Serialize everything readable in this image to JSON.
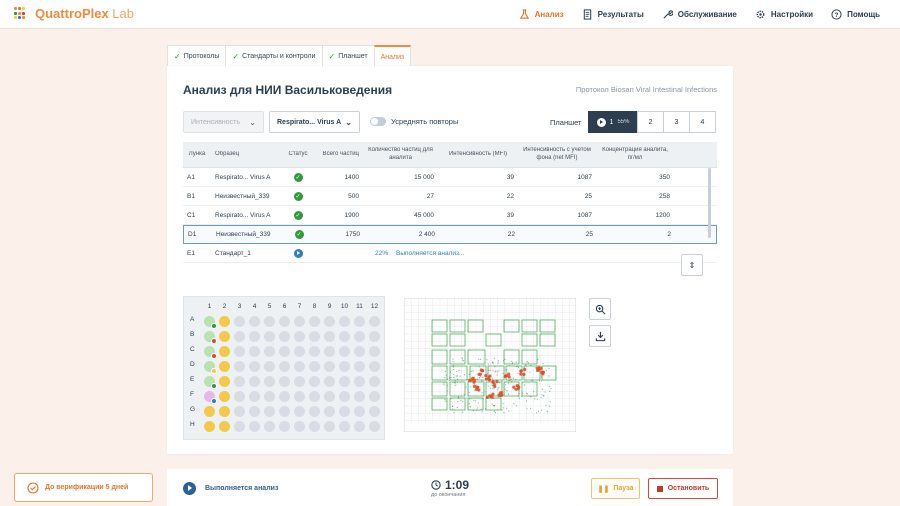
{
  "app": {
    "title_bold": "QuattroPlex",
    "title_thin": " Lab"
  },
  "nav": [
    {
      "label": "Анализ",
      "icon": "flask-icon",
      "active": true
    },
    {
      "label": "Результаты",
      "icon": "document-icon"
    },
    {
      "label": "Обслуживание",
      "icon": "wrench-icon"
    },
    {
      "label": "Настройки",
      "icon": "gear-icon"
    },
    {
      "label": "Помощь",
      "icon": "question-icon"
    }
  ],
  "tabs": [
    {
      "label": "Протоколы",
      "done": true
    },
    {
      "label": "Стандарты и контроли",
      "done": true
    },
    {
      "label": "Планшет",
      "done": true
    },
    {
      "label": "Анализ",
      "active": true
    }
  ],
  "main": {
    "title": "Анализ для НИИ Васильковедения",
    "protocol": "Протокол Biosan Viral Intestinal Infections",
    "select_metric": "Интенсивность",
    "select_analyte": "Respirato... Virus A",
    "average_label": "Усреднять повторы",
    "plate_label": "Планшет",
    "plates": [
      {
        "label": "1",
        "pct": "55%",
        "active": true
      },
      {
        "label": "2"
      },
      {
        "label": "3"
      },
      {
        "label": "4"
      }
    ]
  },
  "table": {
    "headers": [
      "Лунка",
      "Образец",
      "Статус",
      "Всего частиц",
      "Количество частиц для аналита",
      "Интенсивность (MFI)",
      "Интенсивность с учетом фона (net MFI)",
      "Концентрация аналита, пг/мл"
    ],
    "rows": [
      {
        "well": "A1",
        "sample": "Respirato... Virus A",
        "status": "done",
        "total": "1400",
        "count": "15 000",
        "mfi": "39",
        "net": "1087",
        "conc": "350"
      },
      {
        "well": "B1",
        "sample": "Неизвестный_339",
        "status": "done",
        "total": "500",
        "count": "27",
        "mfi": "22",
        "net": "25",
        "conc": "258"
      },
      {
        "well": "C1",
        "sample": "Respirato... Virus A",
        "status": "done",
        "total": "1900",
        "count": "45 000",
        "mfi": "39",
        "net": "1087",
        "conc": "1200"
      },
      {
        "well": "D1",
        "sample": "Неизвестный_339",
        "status": "done",
        "total": "1750",
        "count": "2 400",
        "mfi": "22",
        "net": "25",
        "conc": "2",
        "selected": true
      },
      {
        "well": "E1",
        "sample": "Стандарт_1",
        "status": "running",
        "progress": "22%",
        "progress_text": "Выполняется анализ..."
      }
    ]
  },
  "plate_map": {
    "columns": [
      "1",
      "2",
      "3",
      "4",
      "5",
      "6",
      "7",
      "8",
      "9",
      "10",
      "11",
      "12"
    ],
    "rows": [
      "A",
      "B",
      "C",
      "D",
      "E",
      "F",
      "G",
      "H"
    ]
  },
  "colors": {
    "accent": "#f08a3c",
    "success": "#2e9a3a",
    "info": "#2f7cc8",
    "danger": "#c0392b"
  },
  "verification": {
    "label": "До верификации 5 дней"
  },
  "footer": {
    "status": "Выполняется анализ",
    "timer": "1:09",
    "timer_sub": "до окончания",
    "pause": "Пауза",
    "stop": "Остановить"
  }
}
